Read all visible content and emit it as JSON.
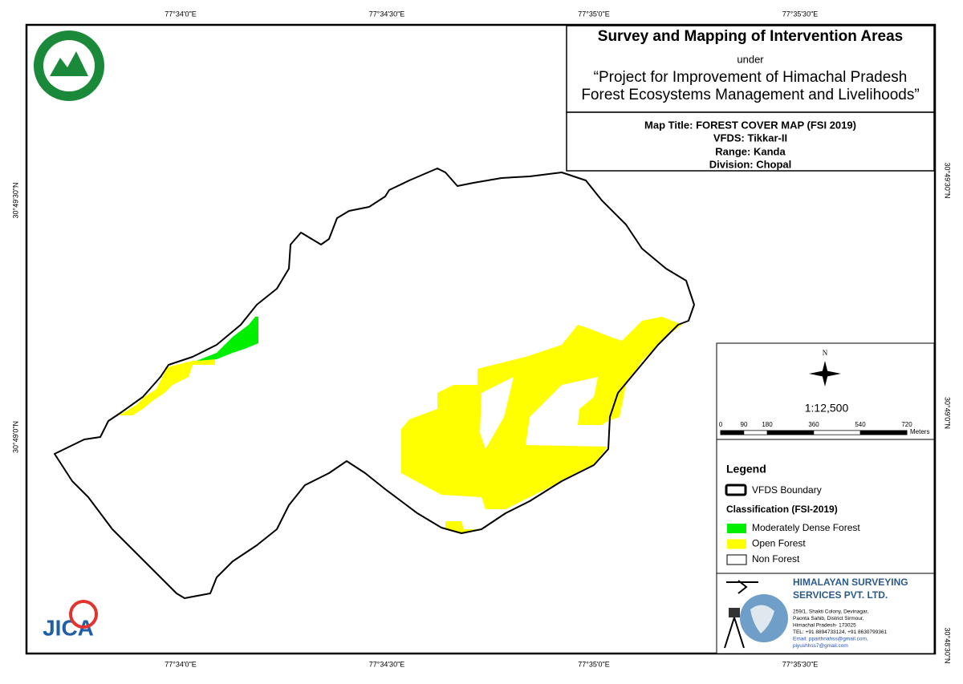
{
  "header": {
    "title": "Survey and Mapping of Intervention Areas",
    "under": "under",
    "project_line1": "“Project for Improvement of Himachal Pradesh",
    "project_line2": "Forest Ecosystems Management and Livelihoods”"
  },
  "map_info": {
    "map_title": "Map Title: FOREST COVER MAP (FSI 2019)",
    "vfds": "VFDS: Tikkar-II",
    "range": "Range: Kanda",
    "division": "Division: Chopal"
  },
  "grid_labels": {
    "top": [
      "77°34'0\"E",
      "77°34'30\"E",
      "77°35'0\"E",
      "77°35'30\"E"
    ],
    "bottom": [
      "77°34'0\"E",
      "77°34'30\"E",
      "77°35'0\"E",
      "77°35'30\"E"
    ],
    "left": [
      "30°49'30\"N",
      "30°49'0\"N"
    ],
    "right": [
      "30°49'30\"N",
      "30°49'0\"N",
      "30°48'30\"N"
    ]
  },
  "north": "N",
  "scale": "1:12,500",
  "scale_bar": {
    "labels": [
      0,
      90,
      180,
      360,
      540,
      720
    ],
    "unit": "Meters"
  },
  "legend": {
    "title": "Legend",
    "boundary": "VFDS Boundary",
    "classification_title": "Classification (FSI-2019)",
    "items": [
      {
        "label": "Moderately Dense Forest",
        "color": "#00ee00"
      },
      {
        "label": "Open Forest",
        "color": "#ffff00"
      },
      {
        "label": "Non Forest",
        "color": "#ffffff"
      }
    ]
  },
  "company": {
    "name_line1": "HIMALAYAN SURVEYING",
    "name_line2": "SERVICES PVT. LTD.",
    "address": [
      "259/1, Shakti Colony, Devinagar,",
      "Paonta Sahib, District Sirmour,",
      "Himachal Pradesh- 173025",
      "TEL: +91 8894733124, +91 8630799361",
      "Email: pparthnahss@gmail.com,",
      "piyushhss7@gmail.com"
    ]
  },
  "logos": {
    "jica": "JICA"
  }
}
